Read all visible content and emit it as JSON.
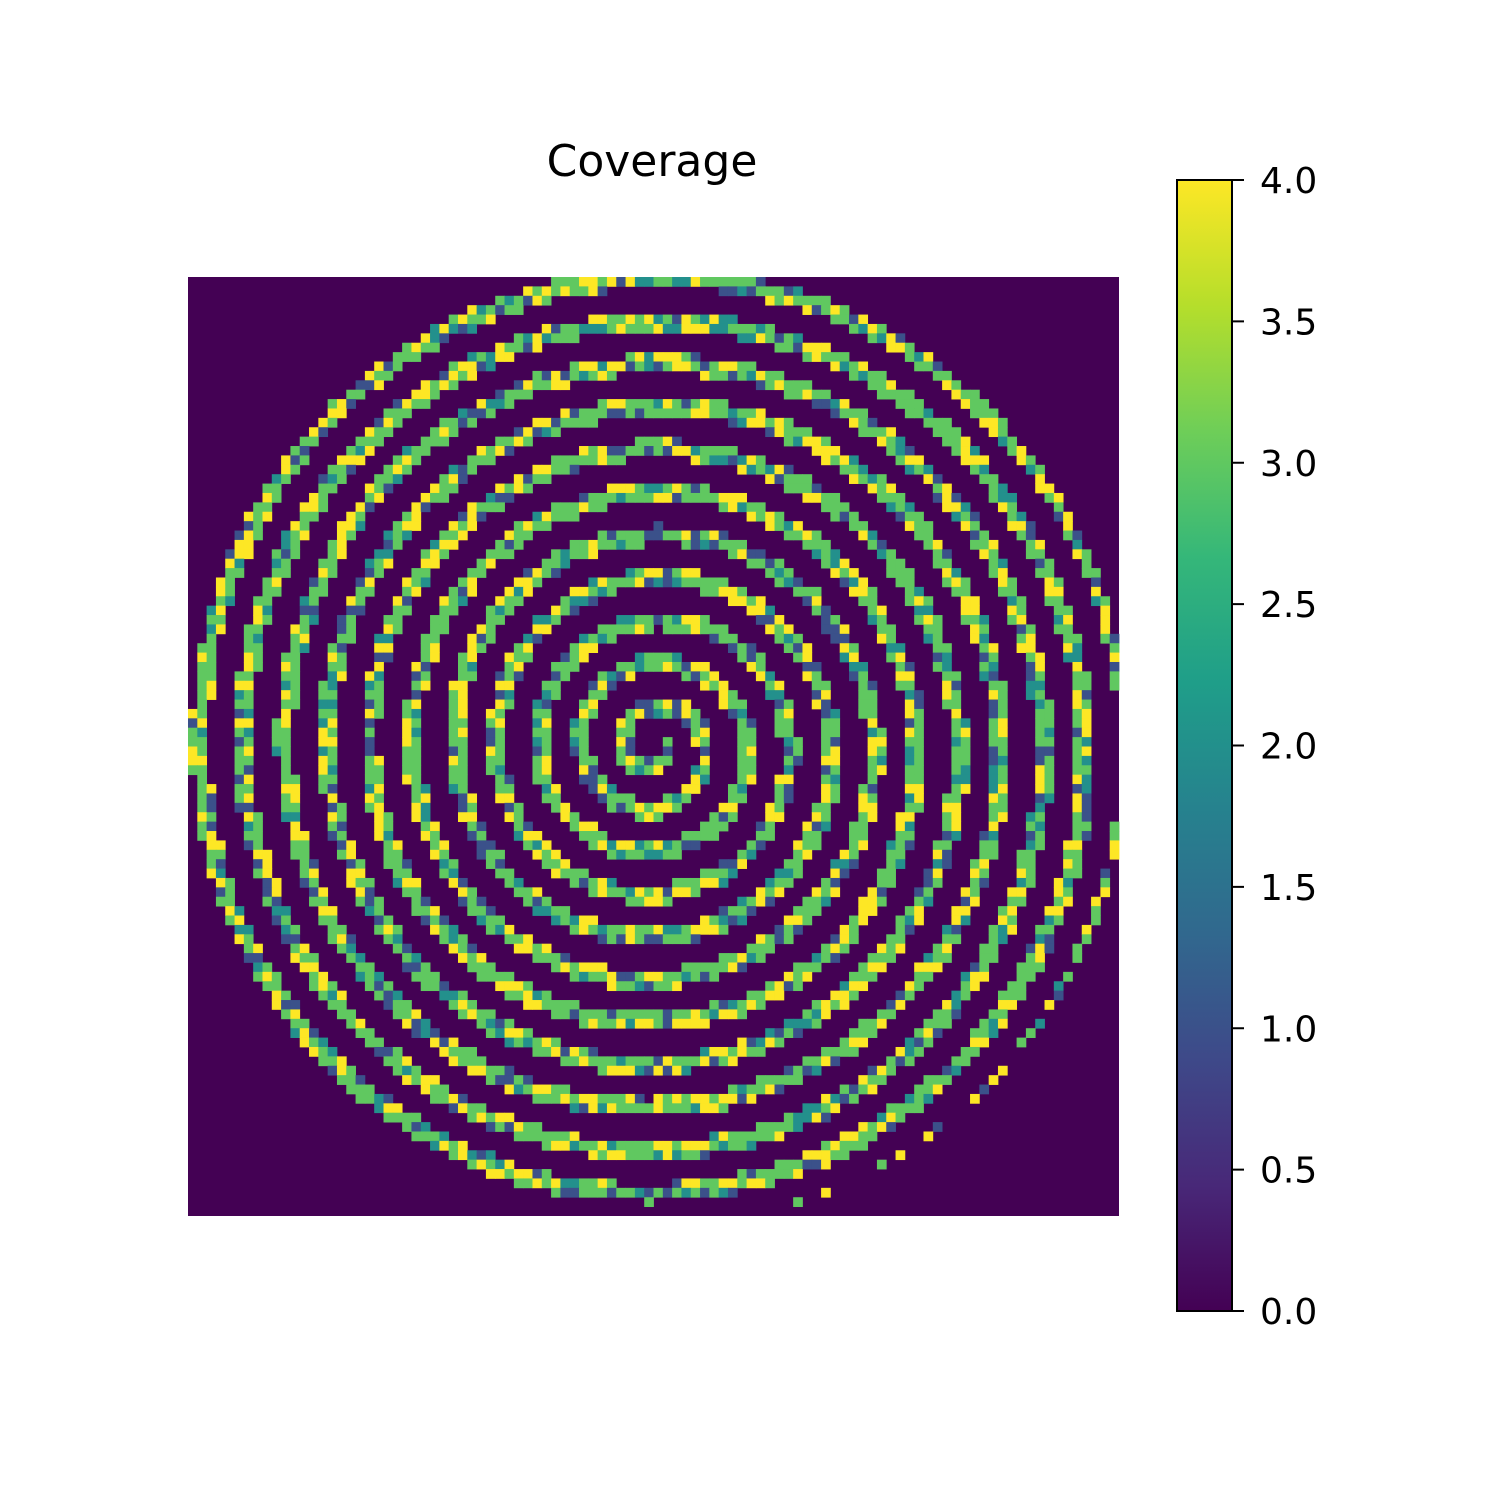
{
  "chart_data": {
    "type": "heatmap",
    "title": "Coverage",
    "grid_size": 100,
    "pattern": "archimedean-spiral",
    "spiral_turns": 11,
    "value_min": 0.0,
    "value_max": 4.0,
    "background_value": 0,
    "band_values": [
      3,
      3,
      3,
      4,
      3,
      4,
      2,
      1
    ],
    "colormap": "viridis",
    "colormap_stops": [
      "#440154",
      "#482878",
      "#3e4989",
      "#31688e",
      "#26828e",
      "#1f9e89",
      "#35b779",
      "#6ece58",
      "#b5de2b",
      "#fde725"
    ],
    "colorbar": {
      "ticks": [
        "0.0",
        "0.5",
        "1.0",
        "1.5",
        "2.0",
        "2.5",
        "3.0",
        "3.5",
        "4.0"
      ],
      "placement": "right"
    }
  }
}
